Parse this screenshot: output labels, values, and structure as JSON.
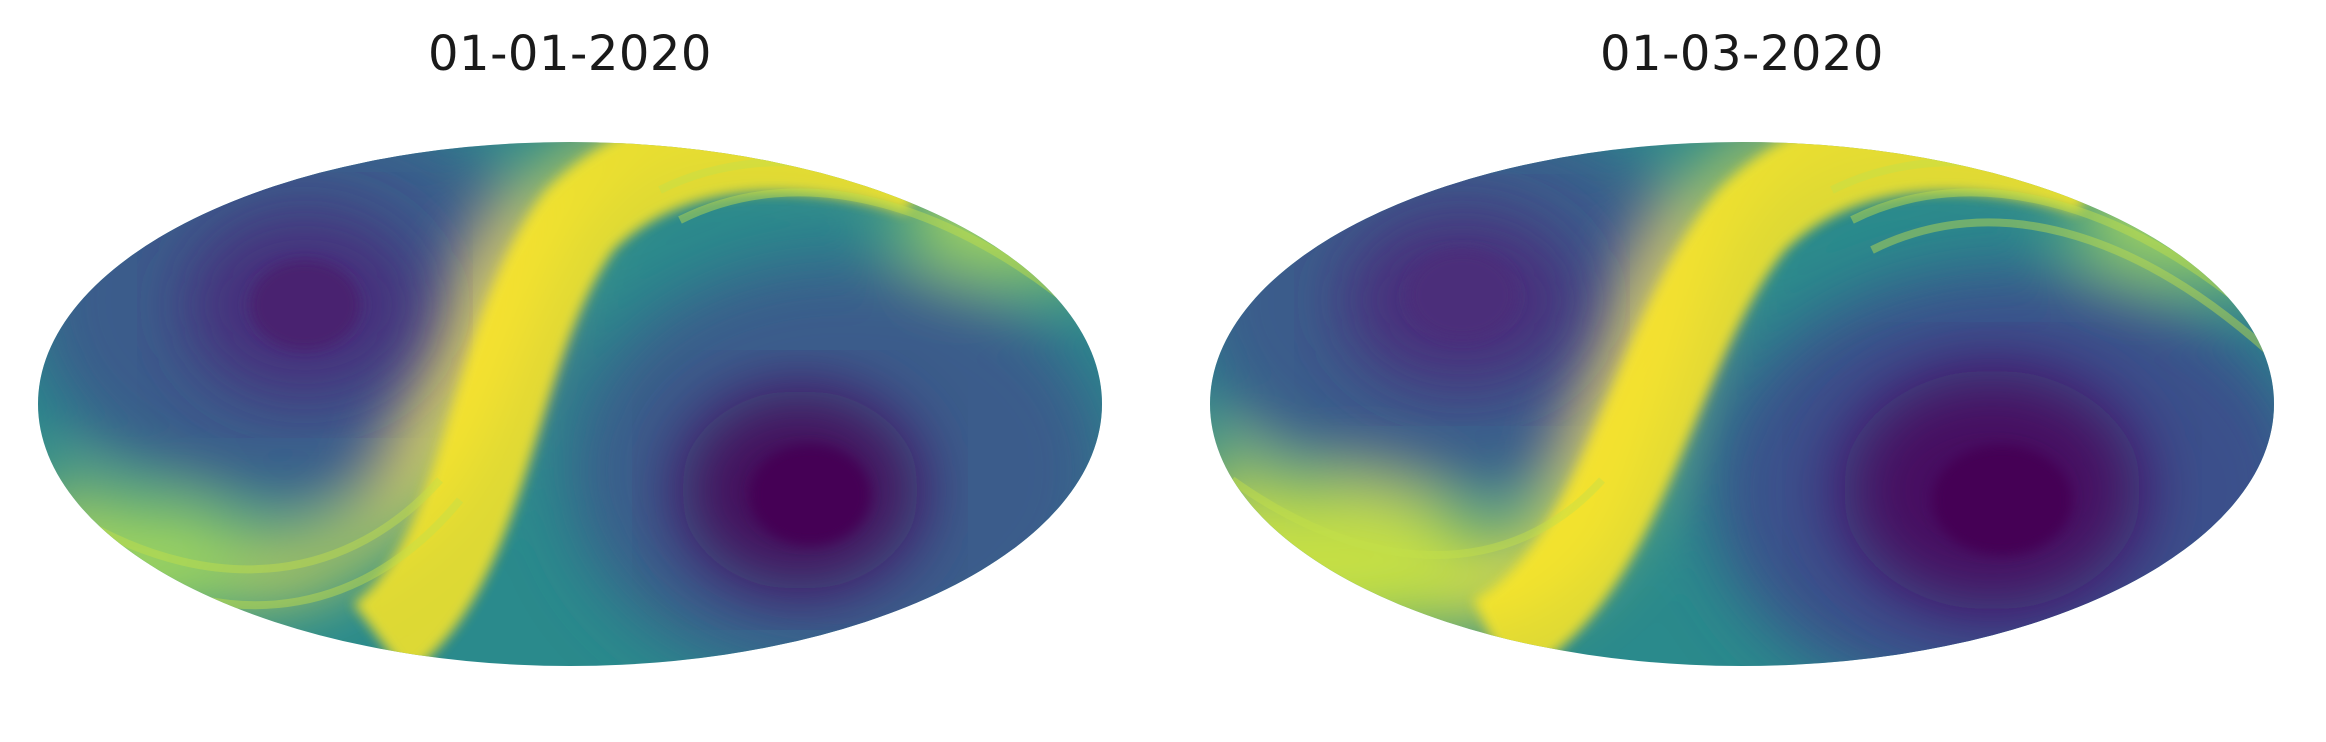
{
  "maps": [
    {
      "title": "01-01-2020",
      "projection": "mollweide",
      "colormap": "viridis",
      "low_centers": [
        "upper-left",
        "lower-right"
      ],
      "high_band": "diagonal S-shaped band from lower-left to upper-right"
    },
    {
      "title": "01-03-2020",
      "projection": "mollweide",
      "colormap": "viridis",
      "low_centers": [
        "upper-left",
        "lower-right"
      ],
      "high_band": "diagonal S-shaped band from lower-left to upper-right"
    }
  ],
  "colors": {
    "viridis_dark": "#440154",
    "viridis_purple": "#472d7b",
    "viridis_blue": "#3b528b",
    "viridis_teal": "#21918c",
    "viridis_green": "#5ec962",
    "viridis_yellow": "#fde725"
  }
}
